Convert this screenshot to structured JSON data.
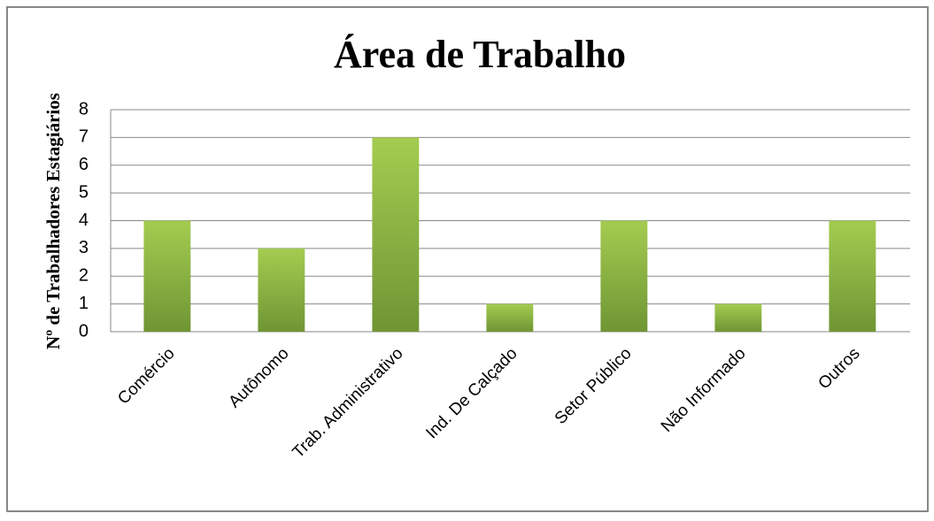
{
  "chart_data": {
    "type": "bar",
    "title": "Área de Trabalho",
    "y_label": "Nº de Trabalhadores Estagiários",
    "categories": [
      "Comércio",
      "Autônomo",
      "Trab. Administrativo",
      "Ind. De Calçado",
      "Setor Público",
      "Não Informado",
      "Outros"
    ],
    "values": [
      4,
      3,
      7,
      1,
      4,
      1,
      4
    ],
    "color": "#8db84a",
    "ylim": [
      0,
      8
    ],
    "yticks": [
      0,
      1,
      2,
      3,
      4,
      5,
      6,
      7,
      8
    ],
    "grid": true
  }
}
